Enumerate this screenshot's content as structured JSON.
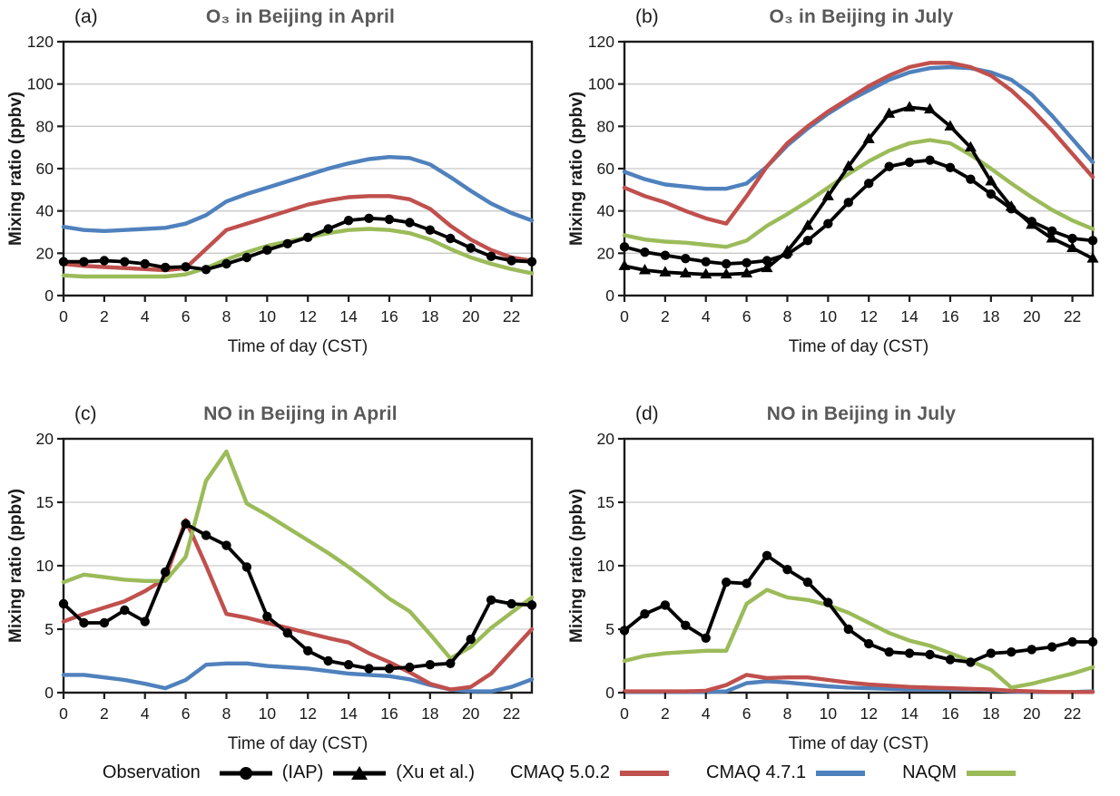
{
  "colors": {
    "observation": "#000000",
    "cmaq502": "#C0504D",
    "cmaq471": "#4F81BD",
    "naqm": "#9BBB59",
    "title_gray": "#595959",
    "gridline": "#C9C9C9",
    "background": "#FFFFFF"
  },
  "legend": {
    "observation_label": "Observation",
    "iap_label": "(IAP)",
    "xu_label": "(Xu et al.)",
    "cmaq502_label": "CMAQ 5.0.2",
    "cmaq471_label": "CMAQ 4.7.1",
    "naqm_label": "NAQM"
  },
  "chart_data": [
    {
      "id": "a",
      "panel_label": "(a)",
      "title": "O₃ in Beijing in April",
      "type": "line",
      "xlabel": "Time of day (CST)",
      "ylabel": "Mixing ratio (ppbv)",
      "xlim": [
        0,
        23
      ],
      "ylim": [
        0,
        120
      ],
      "xticks": [
        0,
        2,
        4,
        6,
        8,
        10,
        12,
        14,
        16,
        18,
        20,
        22
      ],
      "yticks": [
        0,
        20,
        40,
        60,
        80,
        100,
        120
      ],
      "grid": "horizontal",
      "x": [
        0,
        1,
        2,
        3,
        4,
        5,
        6,
        7,
        8,
        9,
        10,
        11,
        12,
        13,
        14,
        15,
        16,
        17,
        18,
        19,
        20,
        21,
        22,
        23
      ],
      "series": [
        {
          "key": "cmaq471",
          "name": "CMAQ 4.7.1",
          "color": "#4F81BD",
          "marker": null,
          "values": [
            32.5,
            31,
            30.5,
            31,
            31.5,
            32,
            34,
            38,
            44.5,
            48,
            51,
            54,
            57,
            60,
            62.5,
            64.5,
            65.5,
            65,
            62,
            56,
            49.5,
            43.5,
            39,
            35.5
          ]
        },
        {
          "key": "cmaq502",
          "name": "CMAQ 5.0.2",
          "color": "#C0504D",
          "marker": null,
          "values": [
            15,
            14,
            13.5,
            13,
            12.5,
            12,
            13,
            22,
            31,
            34,
            37,
            40,
            43,
            45,
            46.5,
            47,
            47,
            45.5,
            41,
            33,
            26.5,
            21.5,
            18,
            16.5
          ]
        },
        {
          "key": "naqm",
          "name": "NAQM",
          "color": "#9BBB59",
          "marker": null,
          "values": [
            9.5,
            9,
            9,
            9,
            9,
            9,
            10,
            13,
            17,
            20.5,
            23.5,
            25.5,
            27.5,
            29.5,
            31,
            31.5,
            31,
            29.5,
            26.5,
            22,
            18,
            15,
            12.5,
            10.5
          ]
        },
        {
          "key": "obs_iap",
          "name": "Observation (IAP)",
          "color": "#000000",
          "marker": "circle",
          "values": [
            16,
            16,
            16.5,
            16,
            15,
            13.3,
            13.6,
            12.3,
            15,
            18,
            21.5,
            24.5,
            27.5,
            31.5,
            35.5,
            36.5,
            36,
            34.5,
            31,
            27,
            22.5,
            18.5,
            16.5,
            16
          ]
        }
      ]
    },
    {
      "id": "b",
      "panel_label": "(b)",
      "title": "O₃ in Beijing in July",
      "type": "line",
      "xlabel": "Time of day (CST)",
      "ylabel": "Mixing ratio (ppbv)",
      "xlim": [
        0,
        23
      ],
      "ylim": [
        0,
        120
      ],
      "xticks": [
        0,
        2,
        4,
        6,
        8,
        10,
        12,
        14,
        16,
        18,
        20,
        22
      ],
      "yticks": [
        0,
        20,
        40,
        60,
        80,
        100,
        120
      ],
      "grid": "horizontal",
      "x": [
        0,
        1,
        2,
        3,
        4,
        5,
        6,
        7,
        8,
        9,
        10,
        11,
        12,
        13,
        14,
        15,
        16,
        17,
        18,
        19,
        20,
        21,
        22,
        23
      ],
      "series": [
        {
          "key": "cmaq471",
          "name": "CMAQ 4.7.1",
          "color": "#4F81BD",
          "marker": null,
          "values": [
            58.5,
            55,
            52.5,
            51.5,
            50.5,
            50.5,
            53,
            61,
            71,
            79,
            86,
            92,
            97,
            102,
            105.5,
            107.5,
            108,
            107.5,
            105.5,
            102,
            95,
            85,
            74,
            63
          ]
        },
        {
          "key": "cmaq502",
          "name": "CMAQ 5.0.2",
          "color": "#C0504D",
          "marker": null,
          "values": [
            51,
            47,
            44,
            40,
            36.5,
            34,
            47,
            61,
            72,
            80,
            87,
            93,
            99,
            104,
            108,
            110,
            110,
            108,
            104,
            97,
            88,
            78,
            67,
            56
          ]
        },
        {
          "key": "naqm",
          "name": "NAQM",
          "color": "#9BBB59",
          "marker": null,
          "values": [
            28.5,
            26.5,
            25.5,
            25,
            24,
            23,
            26,
            33,
            38.5,
            44.5,
            51,
            57.5,
            63.5,
            68.5,
            72,
            73.5,
            72,
            66.5,
            60,
            53,
            46.5,
            40.5,
            35.5,
            31.5
          ]
        },
        {
          "key": "obs_xu",
          "name": "Observation (Xu et al.)",
          "color": "#000000",
          "marker": "triangle",
          "values": [
            14,
            12,
            11,
            10.5,
            10,
            10,
            10.5,
            13,
            21,
            33,
            47,
            61,
            74,
            86,
            89,
            88,
            80,
            70,
            54,
            42,
            33.5,
            27,
            22.5,
            17.5
          ]
        },
        {
          "key": "obs_iap",
          "name": "Observation (IAP)",
          "color": "#000000",
          "marker": "circle",
          "values": [
            23,
            20.5,
            19,
            17.5,
            16,
            15,
            15.5,
            16.5,
            19.5,
            26,
            34,
            44,
            53,
            61,
            63,
            64,
            60.5,
            55,
            48,
            41,
            35,
            30.5,
            27,
            26
          ]
        }
      ]
    },
    {
      "id": "c",
      "panel_label": "(c)",
      "title": "NO in Beijing in April",
      "type": "line",
      "xlabel": "Time of day (CST)",
      "ylabel": "Mixing ratio (ppbv)",
      "xlim": [
        0,
        23
      ],
      "ylim": [
        0,
        20
      ],
      "xticks": [
        0,
        2,
        4,
        6,
        8,
        10,
        12,
        14,
        16,
        18,
        20,
        22
      ],
      "yticks": [
        0,
        5,
        10,
        15,
        20
      ],
      "grid": "horizontal",
      "x": [
        0,
        1,
        2,
        3,
        4,
        5,
        6,
        7,
        8,
        9,
        10,
        11,
        12,
        13,
        14,
        15,
        16,
        17,
        18,
        19,
        20,
        21,
        22,
        23
      ],
      "series": [
        {
          "key": "cmaq471",
          "name": "CMAQ 4.7.1",
          "color": "#4F81BD",
          "marker": null,
          "values": [
            1.4,
            1.4,
            1.2,
            1.0,
            0.7,
            0.35,
            1.0,
            2.2,
            2.3,
            2.3,
            2.1,
            2.0,
            1.9,
            1.7,
            1.5,
            1.4,
            1.3,
            1.05,
            0.6,
            0.25,
            0.1,
            0.1,
            0.45,
            1.05
          ]
        },
        {
          "key": "cmaq502",
          "name": "CMAQ 5.0.2",
          "color": "#C0504D",
          "marker": null,
          "values": [
            5.6,
            6.2,
            6.7,
            7.2,
            8.0,
            9.0,
            13.6,
            10.0,
            6.2,
            5.9,
            5.5,
            5.1,
            4.7,
            4.3,
            3.95,
            3.1,
            2.4,
            1.6,
            0.7,
            0.25,
            0.45,
            1.5,
            3.25,
            5.0
          ]
        },
        {
          "key": "naqm",
          "name": "NAQM",
          "color": "#9BBB59",
          "marker": null,
          "values": [
            8.7,
            9.3,
            9.1,
            8.9,
            8.8,
            8.8,
            10.7,
            16.7,
            19.0,
            14.9,
            14.0,
            13.0,
            12.0,
            11.0,
            9.9,
            8.7,
            7.4,
            6.4,
            4.6,
            2.7,
            3.6,
            5.1,
            6.3,
            7.5
          ]
        },
        {
          "key": "obs_iap",
          "name": "Observation (IAP)",
          "color": "#000000",
          "marker": "circle",
          "values": [
            7.0,
            5.5,
            5.5,
            6.5,
            5.6,
            9.5,
            13.3,
            12.4,
            11.6,
            9.9,
            6.0,
            4.7,
            3.3,
            2.5,
            2.2,
            1.9,
            1.9,
            2.0,
            2.2,
            2.3,
            4.2,
            7.3,
            7.0,
            6.9
          ]
        }
      ]
    },
    {
      "id": "d",
      "panel_label": "(d)",
      "title": "NO in Beijing in July",
      "type": "line",
      "xlabel": "Time of day (CST)",
      "ylabel": "Mixing ratio (ppbv)",
      "xlim": [
        0,
        23
      ],
      "ylim": [
        0,
        20
      ],
      "xticks": [
        0,
        2,
        4,
        6,
        8,
        10,
        12,
        14,
        16,
        18,
        20,
        22
      ],
      "yticks": [
        0,
        5,
        10,
        15,
        20
      ],
      "grid": "horizontal",
      "x": [
        0,
        1,
        2,
        3,
        4,
        5,
        6,
        7,
        8,
        9,
        10,
        11,
        12,
        13,
        14,
        15,
        16,
        17,
        18,
        19,
        20,
        21,
        22,
        23
      ],
      "series": [
        {
          "key": "cmaq471",
          "name": "CMAQ 4.7.1",
          "color": "#4F81BD",
          "marker": null,
          "values": [
            0.05,
            0.05,
            0.05,
            0.05,
            0.05,
            0.1,
            0.75,
            0.9,
            0.8,
            0.65,
            0.5,
            0.4,
            0.35,
            0.3,
            0.25,
            0.25,
            0.25,
            0.25,
            0.2,
            0.1,
            0.05,
            0.05,
            0.05,
            0.1
          ]
        },
        {
          "key": "cmaq502",
          "name": "CMAQ 5.0.2",
          "color": "#C0504D",
          "marker": null,
          "values": [
            0.1,
            0.1,
            0.1,
            0.1,
            0.15,
            0.6,
            1.4,
            1.15,
            1.2,
            1.2,
            1.0,
            0.8,
            0.65,
            0.55,
            0.45,
            0.4,
            0.35,
            0.3,
            0.25,
            0.15,
            0.1,
            0.05,
            0.05,
            0.05
          ]
        },
        {
          "key": "naqm",
          "name": "NAQM",
          "color": "#9BBB59",
          "marker": null,
          "values": [
            2.5,
            2.9,
            3.1,
            3.2,
            3.3,
            3.3,
            7.0,
            8.1,
            7.5,
            7.3,
            6.9,
            6.3,
            5.5,
            4.7,
            4.1,
            3.7,
            3.1,
            2.5,
            1.8,
            0.4,
            0.7,
            1.1,
            1.5,
            2.0
          ]
        },
        {
          "key": "obs_iap",
          "name": "Observation (IAP)",
          "color": "#000000",
          "marker": "circle",
          "values": [
            4.9,
            6.2,
            6.9,
            5.3,
            4.3,
            8.7,
            8.6,
            10.8,
            9.7,
            8.7,
            7.1,
            5.0,
            3.85,
            3.2,
            3.1,
            3.0,
            2.6,
            2.4,
            3.1,
            3.2,
            3.4,
            3.6,
            4.0,
            4.0
          ]
        }
      ]
    }
  ]
}
